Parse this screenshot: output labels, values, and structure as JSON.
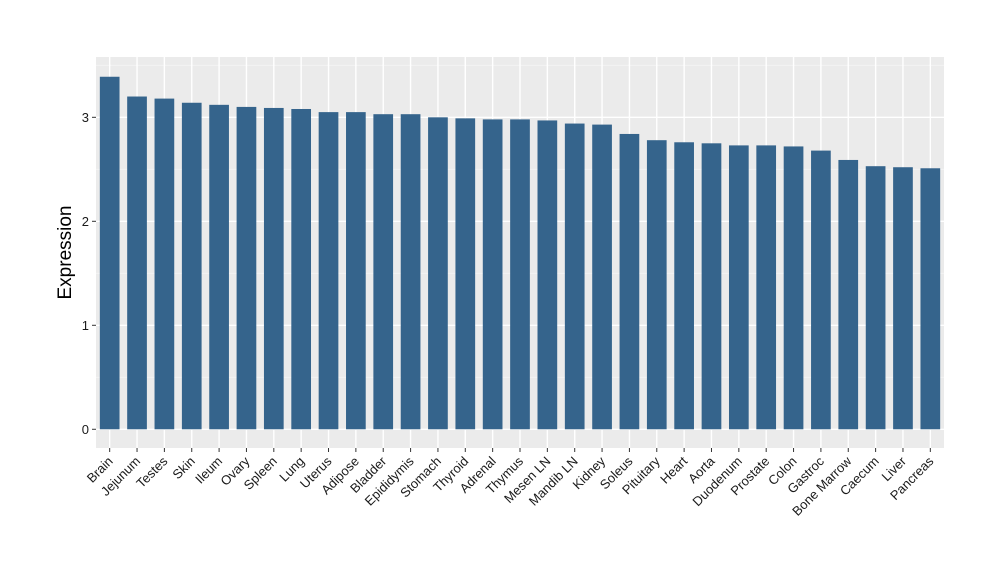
{
  "chart_data": {
    "type": "bar",
    "categories": [
      "Brain",
      "Jejunum",
      "Testes",
      "Skin",
      "Ileum",
      "Ovary",
      "Spleen",
      "Lung",
      "Uterus",
      "Adipose",
      "Bladder",
      "Epididymis",
      "Stomach",
      "Thyroid",
      "Adrenal",
      "Thymus",
      "Mesen LN",
      "Mandib LN",
      "Kidney",
      "Soleus",
      "Pituitary",
      "Heart",
      "Aorta",
      "Duodenum",
      "Prostate",
      "Colon",
      "Gastroc",
      "Bone Marrow",
      "Caecum",
      "Liver",
      "Pancreas"
    ],
    "values": [
      3.39,
      3.2,
      3.18,
      3.14,
      3.12,
      3.1,
      3.09,
      3.08,
      3.05,
      3.05,
      3.03,
      3.03,
      3.0,
      2.99,
      2.98,
      2.98,
      2.97,
      2.94,
      2.93,
      2.84,
      2.78,
      2.76,
      2.75,
      2.73,
      2.73,
      2.72,
      2.68,
      2.59,
      2.53,
      2.52,
      2.51
    ],
    "xlabel": "",
    "ylabel": "Expression",
    "ylim": [
      -0.18,
      3.58
    ],
    "yticks": [
      "0",
      "1",
      "2",
      "3"
    ],
    "grid": true,
    "colors": {
      "bar": "#35648c",
      "panel": "#ebebeb",
      "grid_major": "#ffffff",
      "grid_minor": "#f5f5f5"
    }
  }
}
